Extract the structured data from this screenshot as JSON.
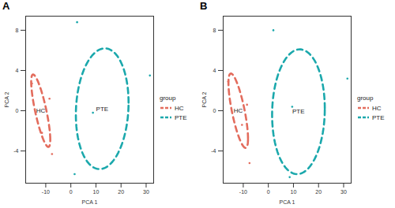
{
  "chart_data": [
    {
      "type": "scatter",
      "title": "A",
      "x_label": "PCA 1",
      "y_label": "PCA 2",
      "legend_title": "group",
      "legend": "right",
      "xlim": [
        -18,
        33
      ],
      "ylim": [
        -7.2,
        9.4
      ],
      "xticks": [
        -10,
        0,
        10,
        20,
        30
      ],
      "yticks": [
        -4,
        0,
        4,
        8
      ],
      "series": [
        {
          "name": "HC",
          "color": "#E36C5D",
          "x": [
            -15.5,
            -8.5,
            -11.5,
            -7.5
          ],
          "y": [
            2.7,
            1.2,
            -2.2,
            -4.3
          ],
          "ellipse": {
            "center": [
              -12,
              0
            ],
            "radius": [
              3.8,
              3.6
            ],
            "correlation": -0.8
          }
        },
        {
          "name": "PTE",
          "color": "#1BA8AC",
          "x": [
            2.5,
            31.5,
            8.8,
            1.5
          ],
          "y": [
            8.8,
            3.5,
            -0.2,
            -6.3
          ],
          "ellipse": {
            "center": [
              12.5,
              0.2
            ],
            "radius": [
              10.5,
              6
            ],
            "correlation": 0.1
          }
        }
      ]
    },
    {
      "type": "scatter",
      "title": "B",
      "x_label": "PCA 1",
      "y_label": "PCA 2",
      "legend_title": "group",
      "legend": "right",
      "xlim": [
        -18,
        33
      ],
      "ylim": [
        -7.2,
        9.4
      ],
      "xticks": [
        -10,
        0,
        10,
        20,
        30
      ],
      "yticks": [
        -4,
        0,
        4,
        8
      ],
      "series": [
        {
          "name": "HC",
          "color": "#E36C5D",
          "x": [
            -16,
            -8.5,
            -10.5,
            -7.5
          ],
          "y": [
            2.9,
            0.6,
            -1.4,
            -5.2
          ],
          "ellipse": {
            "center": [
              -12,
              0
            ],
            "radius": [
              3.9,
              3.7
            ],
            "correlation": -0.75
          }
        },
        {
          "name": "PTE",
          "color": "#1BA8AC",
          "x": [
            2,
            31.5,
            9.5,
            8.5
          ],
          "y": [
            8,
            3.2,
            0.4,
            -6.6
          ],
          "ellipse": {
            "center": [
              12,
              -0.1
            ],
            "radius": [
              10.5,
              6.2
            ],
            "correlation": 0.05
          }
        }
      ]
    }
  ]
}
